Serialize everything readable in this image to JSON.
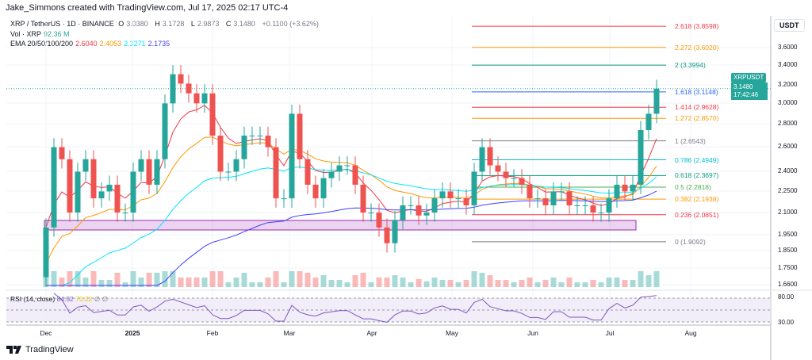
{
  "credit": "Jake_Simmons created with TradingView.com, Jul 17, 2025 02:17 UTC-4",
  "legend": {
    "symbol": "XRP / TetherUS · 1D · BINANCE",
    "o_label": "O",
    "o": "3.0380",
    "h_label": "H",
    "h": "3.1728",
    "l_label": "L",
    "l": "2.9873",
    "c_label": "C",
    "c": "3.1480",
    "change": "+0.1100 (+3.62%)",
    "vol_label": "Vol · XRP",
    "vol": "92.36 M",
    "ema_label": "EMA 20/50/100/200",
    "ema": [
      "2.6040",
      "2.4053",
      "2.3271",
      "2.1735"
    ],
    "ema_colors": [
      "#f23645",
      "#ff9800",
      "#00e5ff",
      "#3f3fff"
    ]
  },
  "axis": {
    "currency": "USDT",
    "ticks": [
      "3.6000",
      "3.4000",
      "3.2000",
      "3.0000",
      "2.8000",
      "2.6000",
      "2.4000",
      "2.2500",
      "2.1000",
      "1.9500",
      "1.8500",
      "1.7500",
      "1.6600"
    ],
    "rsi_ticks": [
      "80.00",
      "30.00"
    ],
    "scale": "log"
  },
  "price_tag": {
    "symbol": "XRPUSDT",
    "price": "3.1480",
    "countdown": "17:42:46"
  },
  "time_labels": [
    "Dec",
    "2025",
    "Feb",
    "Mar",
    "Apr",
    "May",
    "Jun",
    "Jul",
    "Aug"
  ],
  "rsi": {
    "label": "RSI (14, close)",
    "value": "84.52",
    "ma": "70.22",
    "extra": "∅ ∅"
  },
  "fib": [
    {
      "level": "2.618",
      "price": "3.8598",
      "color": "#f23645"
    },
    {
      "level": "2.272",
      "price": "3.6020",
      "color": "#ff9800"
    },
    {
      "level": "2",
      "price": "3.3994",
      "color": "#089981"
    },
    {
      "level": "1.618",
      "price": "3.1148",
      "color": "#2962ff"
    },
    {
      "level": "1.414",
      "price": "2.9628",
      "color": "#f23645"
    },
    {
      "level": "1.272",
      "price": "2.8570",
      "color": "#ff9800"
    },
    {
      "level": "1",
      "price": "2.6543",
      "color": "#787b86"
    },
    {
      "level": "0.786",
      "price": "2.4949",
      "color": "#00bcd4"
    },
    {
      "level": "0.618",
      "price": "2.3697",
      "color": "#089981"
    },
    {
      "level": "0.5",
      "price": "2.2818",
      "color": "#4caf50"
    },
    {
      "level": "0.382",
      "price": "2.1938",
      "color": "#ff9800"
    },
    {
      "level": "0.236",
      "price": "2.0851",
      "color": "#f23645"
    },
    {
      "level": "0",
      "price": "1.9092",
      "color": "#787b86"
    }
  ],
  "colors": {
    "up": "#26a69a",
    "down": "#ef5350",
    "zone": "#9c27b0"
  },
  "brand": "TradingView",
  "chart_data": {
    "type": "candlestick",
    "title": "XRP / TetherUS · 1D · BINANCE",
    "scale": "log",
    "ylim": [
      1.66,
      3.95
    ],
    "dates": [
      "Dec 1",
      "Dec 4",
      "Dec 7",
      "Dec 10",
      "Dec 13",
      "Dec 16",
      "Dec 19",
      "Dec 22",
      "Dec 25",
      "Dec 28",
      "Dec 31",
      "Jan 3",
      "Jan 6",
      "Jan 9",
      "Jan 12",
      "Jan 15",
      "Jan 18",
      "Jan 21",
      "Jan 24",
      "Jan 27",
      "Jan 30",
      "Feb 2",
      "Feb 5",
      "Feb 8",
      "Feb 11",
      "Feb 14",
      "Feb 17",
      "Feb 20",
      "Feb 23",
      "Feb 26",
      "Mar 1",
      "Mar 3",
      "Mar 6",
      "Mar 9",
      "Mar 12",
      "Mar 15",
      "Mar 18",
      "Mar 21",
      "Mar 24",
      "Mar 27",
      "Mar 30",
      "Apr 2",
      "Apr 5",
      "Apr 7",
      "Apr 9",
      "Apr 12",
      "Apr 15",
      "Apr 18",
      "Apr 21",
      "Apr 24",
      "Apr 27",
      "Apr 30",
      "May 3",
      "May 6",
      "May 9",
      "May 12",
      "May 15",
      "May 18",
      "May 21",
      "May 24",
      "May 27",
      "May 30",
      "Jun 2",
      "Jun 5",
      "Jun 8",
      "Jun 11",
      "Jun 14",
      "Jun 17",
      "Jun 20",
      "Jun 23",
      "Jun 26",
      "Jun 29",
      "Jul 2",
      "Jul 5",
      "Jul 8",
      "Jul 11",
      "Jul 14",
      "Jul 17"
    ],
    "close": [
      2.0,
      2.6,
      2.5,
      2.1,
      2.4,
      2.5,
      2.2,
      2.25,
      2.3,
      2.1,
      2.1,
      2.4,
      2.5,
      2.3,
      2.5,
      3.0,
      3.3,
      3.2,
      3.1,
      3.0,
      3.1,
      2.7,
      2.4,
      2.4,
      2.5,
      2.7,
      2.7,
      2.7,
      2.6,
      2.2,
      2.2,
      2.9,
      2.5,
      2.3,
      2.2,
      2.35,
      2.4,
      2.45,
      2.45,
      2.3,
      2.1,
      2.1,
      2.0,
      1.9,
      2.05,
      2.15,
      2.15,
      2.08,
      2.1,
      2.2,
      2.25,
      2.2,
      2.2,
      2.15,
      2.4,
      2.6,
      2.45,
      2.4,
      2.35,
      2.35,
      2.3,
      2.2,
      2.2,
      2.15,
      2.25,
      2.25,
      2.15,
      2.15,
      2.15,
      2.1,
      2.1,
      2.2,
      2.3,
      2.25,
      2.3,
      2.75,
      2.9,
      3.148
    ]
  }
}
